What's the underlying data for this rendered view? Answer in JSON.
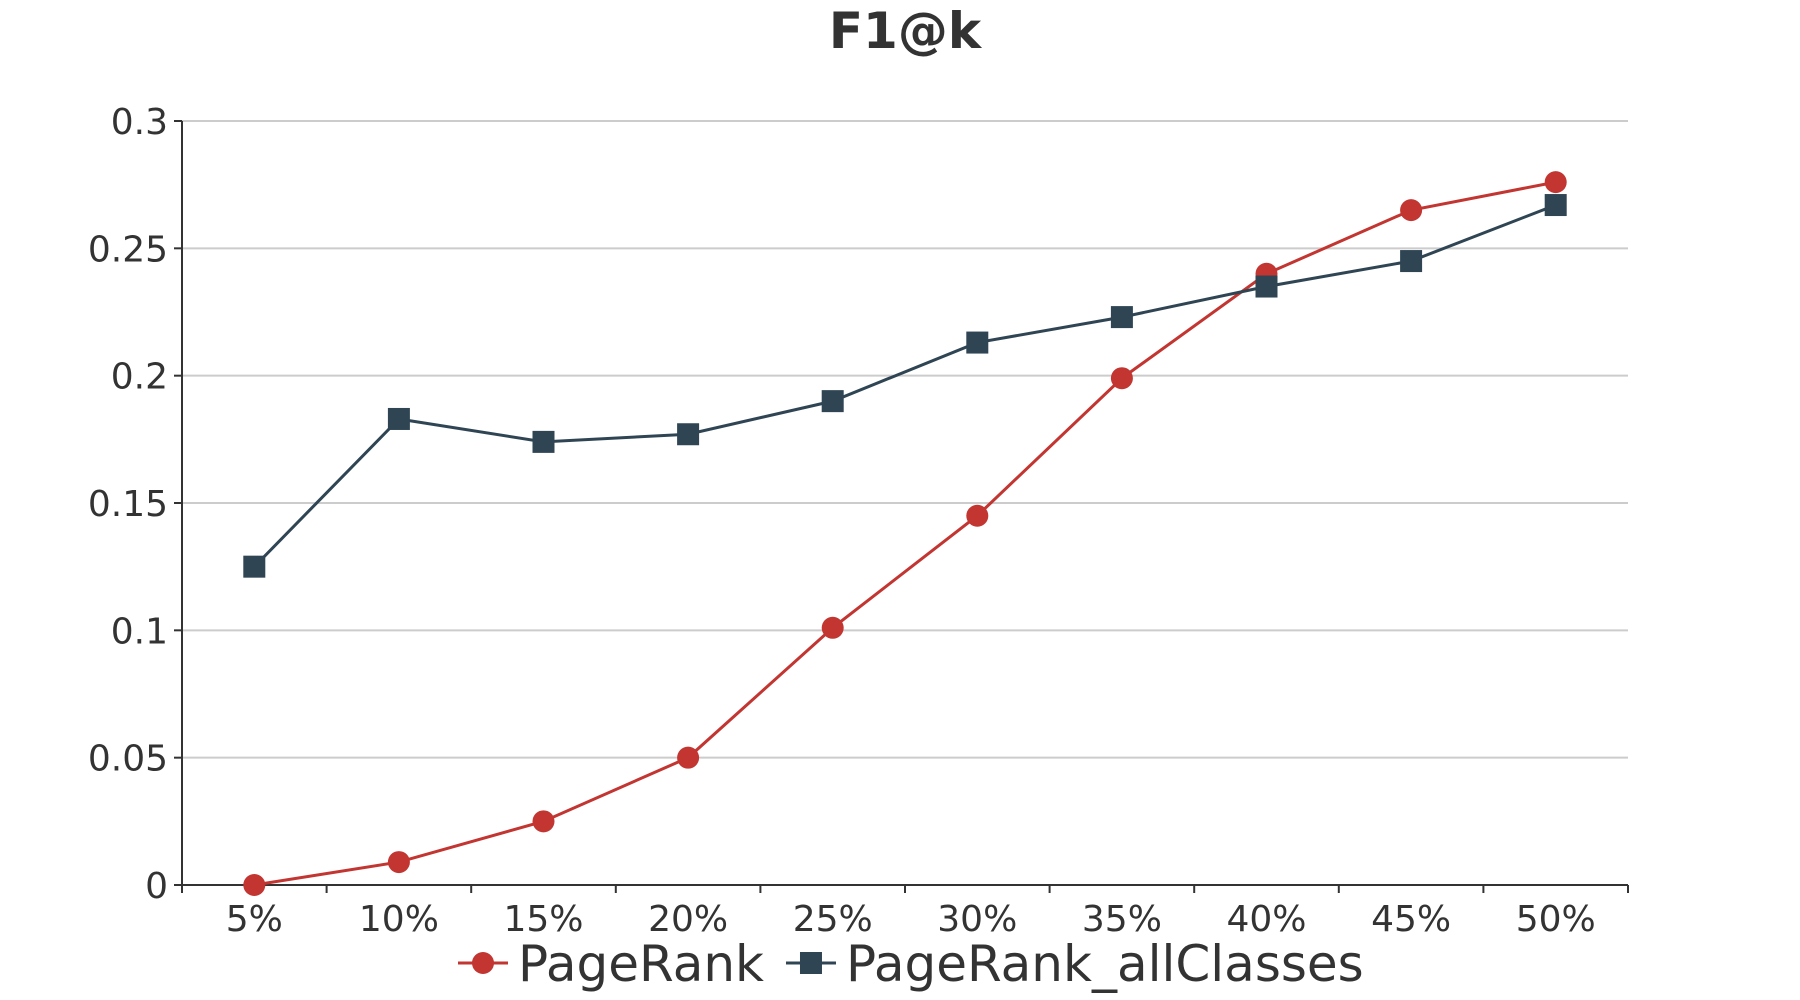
{
  "chart_data": {
    "type": "line",
    "title": "F1@k",
    "xlabel": "",
    "ylabel": "",
    "categories": [
      "5%",
      "10%",
      "15%",
      "20%",
      "25%",
      "30%",
      "35%",
      "40%",
      "45%",
      "50%"
    ],
    "ylim": [
      0,
      0.3
    ],
    "yticks": [
      "0",
      "0.05",
      "0.1",
      "0.15",
      "0.2",
      "0.25",
      "0.3"
    ],
    "grid": true,
    "legend_position": "bottom-center",
    "series": [
      {
        "name": "PageRank",
        "color": "#c23531",
        "marker": "circle",
        "values": [
          0.0,
          0.009,
          0.025,
          0.05,
          0.101,
          0.145,
          0.199,
          0.24,
          0.265,
          0.276
        ]
      },
      {
        "name": "PageRank_allClasses",
        "color": "#2f4554",
        "marker": "square",
        "values": [
          0.125,
          0.183,
          0.174,
          0.177,
          0.19,
          0.213,
          0.223,
          0.235,
          0.245,
          0.267
        ]
      }
    ]
  }
}
